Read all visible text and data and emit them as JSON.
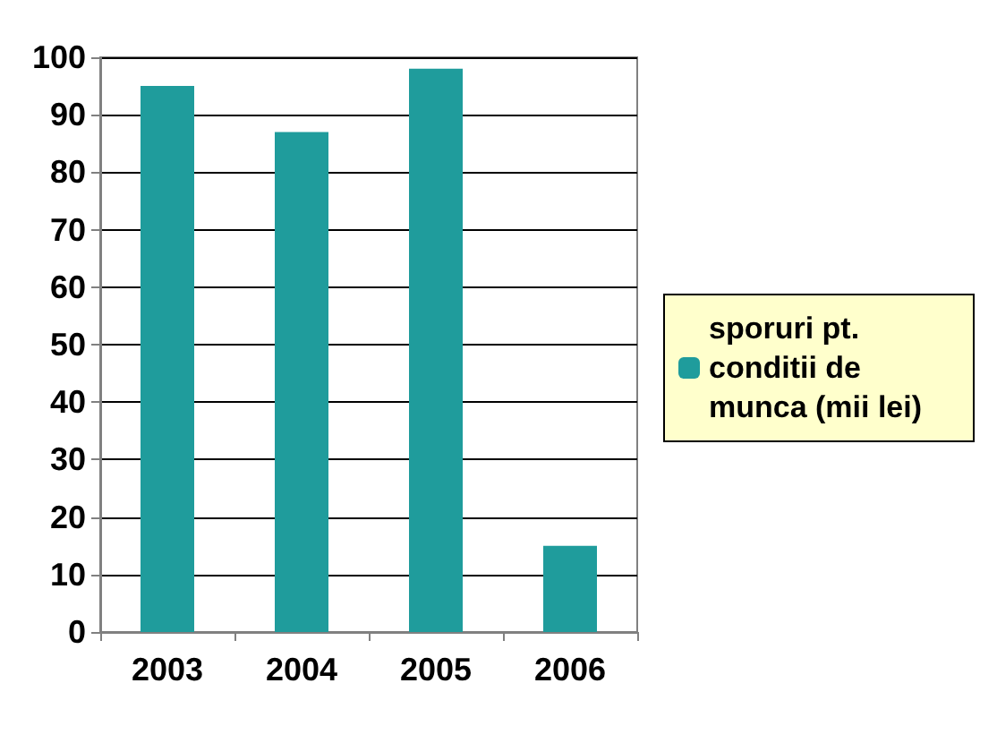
{
  "chart_data": {
    "type": "bar",
    "categories": [
      "2003",
      "2004",
      "2005",
      "2006"
    ],
    "series": [
      {
        "name": "sporuri pt. conditii de munca (mii lei)",
        "color": "#1f9c9c",
        "values": [
          95,
          87,
          98,
          15
        ]
      }
    ],
    "ylim": [
      0,
      100
    ],
    "yticks": [
      0,
      10,
      20,
      30,
      40,
      50,
      60,
      70,
      80,
      90,
      100
    ],
    "grid": "y",
    "legend": "right"
  }
}
